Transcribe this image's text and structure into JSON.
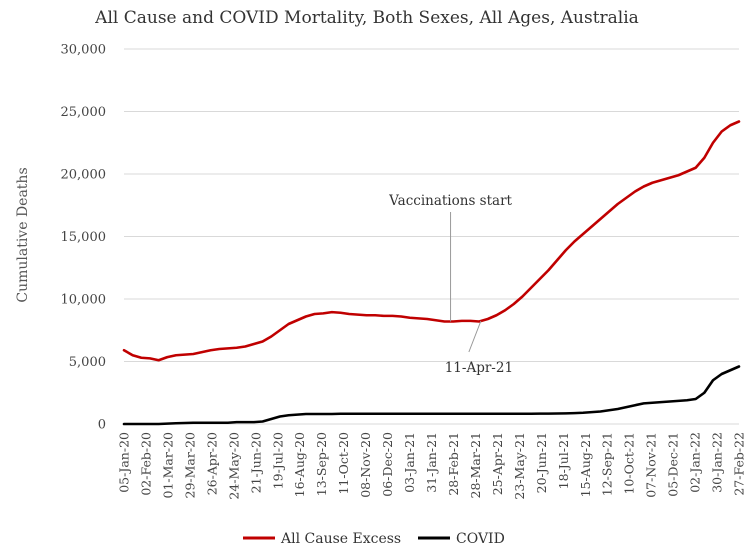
{
  "chart_data": {
    "type": "line",
    "title": "All Cause and COVID Mortality, Both Sexes, All Ages, Australia",
    "xlabel": "",
    "ylabel": "Cumulative Deaths",
    "ylim": [
      0,
      30000
    ],
    "yticks": [
      "0",
      "5,000",
      "10,000",
      "15,000",
      "20,000",
      "25,000",
      "30,000"
    ],
    "x_tick_labels": [
      "05-Jan-20",
      "02-Feb-20",
      "01-Mar-20",
      "29-Mar-20",
      "26-Apr-20",
      "24-May-20",
      "21-Jun-20",
      "19-Jul-20",
      "16-Aug-20",
      "13-Sep-20",
      "11-Oct-20",
      "08-Nov-20",
      "06-Dec-20",
      "03-Jan-21",
      "31-Jan-21",
      "28-Feb-21",
      "28-Mar-21",
      "25-Apr-21",
      "23-May-21",
      "20-Jun-21",
      "18-Jul-21",
      "15-Aug-21",
      "12-Sep-21",
      "10-Oct-21",
      "07-Nov-21",
      "05-Dec-21",
      "02-Jan-22",
      "30-Jan-22",
      "27-Feb-22"
    ],
    "grid": "horizontal",
    "legend_position": "bottom",
    "series": [
      {
        "name": "All Cause Excess",
        "color": "#c00000",
        "values": [
          5900,
          5500,
          5300,
          5250,
          5100,
          5350,
          5500,
          5550,
          5600,
          5750,
          5900,
          6000,
          6050,
          6100,
          6200,
          6400,
          6600,
          7000,
          7500,
          8000,
          8300,
          8600,
          8800,
          8850,
          8950,
          8900,
          8800,
          8750,
          8700,
          8700,
          8650,
          8650,
          8600,
          8500,
          8450,
          8400,
          8300,
          8200,
          8200,
          8250,
          8250,
          8200,
          8400,
          8700,
          9100,
          9600,
          10200,
          10900,
          11600,
          12300,
          13100,
          13900,
          14600,
          15200,
          15800,
          16400,
          17000,
          17600,
          18100,
          18600,
          19000,
          19300,
          19500,
          19700,
          19900,
          20200,
          20500,
          21300,
          22500,
          23400,
          23900,
          24200
        ]
      },
      {
        "name": "COVID",
        "color": "#000000",
        "values": [
          0,
          0,
          0,
          0,
          0,
          30,
          60,
          80,
          100,
          100,
          100,
          100,
          100,
          150,
          150,
          150,
          200,
          400,
          600,
          700,
          750,
          800,
          800,
          800,
          800,
          820,
          820,
          820,
          820,
          820,
          820,
          820,
          820,
          820,
          820,
          820,
          820,
          820,
          820,
          820,
          820,
          820,
          820,
          820,
          820,
          820,
          820,
          820,
          830,
          830,
          840,
          850,
          870,
          900,
          950,
          1000,
          1100,
          1200,
          1350,
          1500,
          1650,
          1700,
          1750,
          1800,
          1850,
          1900,
          2000,
          2500,
          3500,
          4000,
          4300,
          4600
        ]
      }
    ],
    "annotations": [
      {
        "text": "Vaccinations start",
        "x_index": 37.7
      },
      {
        "text": "11-Apr-21",
        "x_index": 41.2
      }
    ]
  }
}
